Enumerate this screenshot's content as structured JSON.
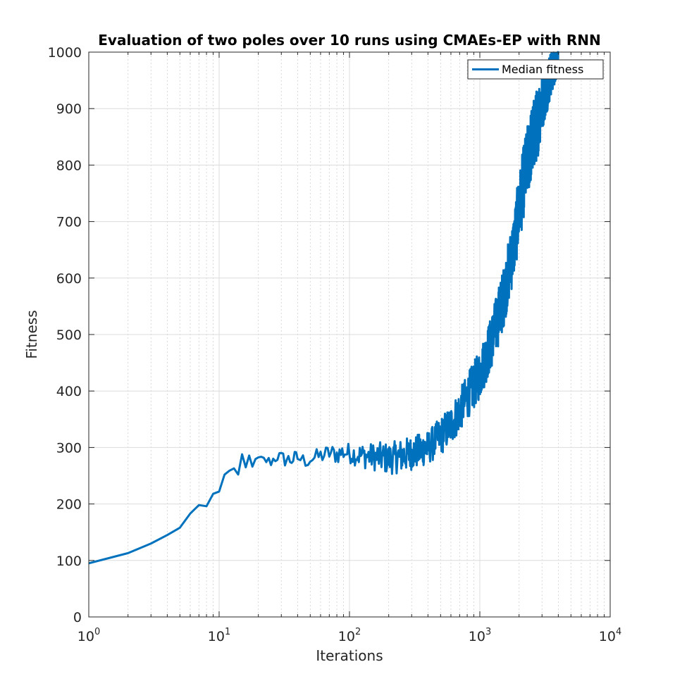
{
  "chart_data": {
    "type": "line",
    "title": "Evaluation of two poles over 10 runs using CMAEs-EP with RNN",
    "xlabel": "Iterations",
    "ylabel": "Fitness",
    "xscale": "log",
    "xlim": [
      1,
      10000
    ],
    "ylim": [
      0,
      1000
    ],
    "grid": true,
    "minor_grid_x": true,
    "legend_position": "top-right",
    "x_ticks": [
      {
        "base": "10",
        "exp": "0",
        "value": 1
      },
      {
        "base": "10",
        "exp": "1",
        "value": 10
      },
      {
        "base": "10",
        "exp": "2",
        "value": 100
      },
      {
        "base": "10",
        "exp": "3",
        "value": 1000
      },
      {
        "base": "10",
        "exp": "4",
        "value": 10000
      }
    ],
    "y_ticks": [
      "0",
      "100",
      "200",
      "300",
      "400",
      "500",
      "600",
      "700",
      "800",
      "900",
      "1000"
    ],
    "series": [
      {
        "name": "Median fitness",
        "color": "#0072bd",
        "x": [
          1,
          2,
          3,
          4,
          5,
          6,
          7,
          8,
          9,
          10,
          11,
          12,
          13,
          14,
          15,
          16,
          17,
          18,
          19,
          20,
          22,
          25,
          28,
          30,
          35,
          40,
          45,
          50,
          60,
          70,
          80,
          90,
          100,
          120,
          150,
          180,
          200,
          250,
          300,
          350,
          400,
          450,
          500,
          600,
          700,
          800,
          900,
          1000,
          1200,
          1500,
          1800,
          2000,
          2200,
          2500,
          2800,
          3000,
          3500,
          4000
        ],
        "values": [
          95,
          113,
          130,
          145,
          158,
          183,
          198,
          196,
          218,
          222,
          252,
          258,
          265,
          250,
          280,
          262,
          283,
          270,
          275,
          280,
          278,
          275,
          285,
          280,
          278,
          282,
          276,
          280,
          285,
          290,
          288,
          292,
          290,
          286,
          284,
          282,
          280,
          285,
          290,
          295,
          300,
          310,
          320,
          340,
          365,
          390,
          410,
          430,
          480,
          560,
          650,
          720,
          780,
          840,
          880,
          920,
          960,
          985
        ],
        "noise_amplitude": [
          0,
          0,
          0,
          0,
          0,
          0,
          0,
          0,
          0,
          0,
          0,
          3,
          5,
          8,
          8,
          8,
          8,
          6,
          6,
          6,
          8,
          10,
          12,
          14,
          14,
          14,
          14,
          14,
          15,
          16,
          18,
          18,
          18,
          22,
          24,
          28,
          28,
          30,
          30,
          30,
          30,
          32,
          34,
          36,
          38,
          40,
          42,
          44,
          48,
          54,
          60,
          64,
          66,
          66,
          64,
          60,
          40,
          20
        ]
      }
    ]
  }
}
